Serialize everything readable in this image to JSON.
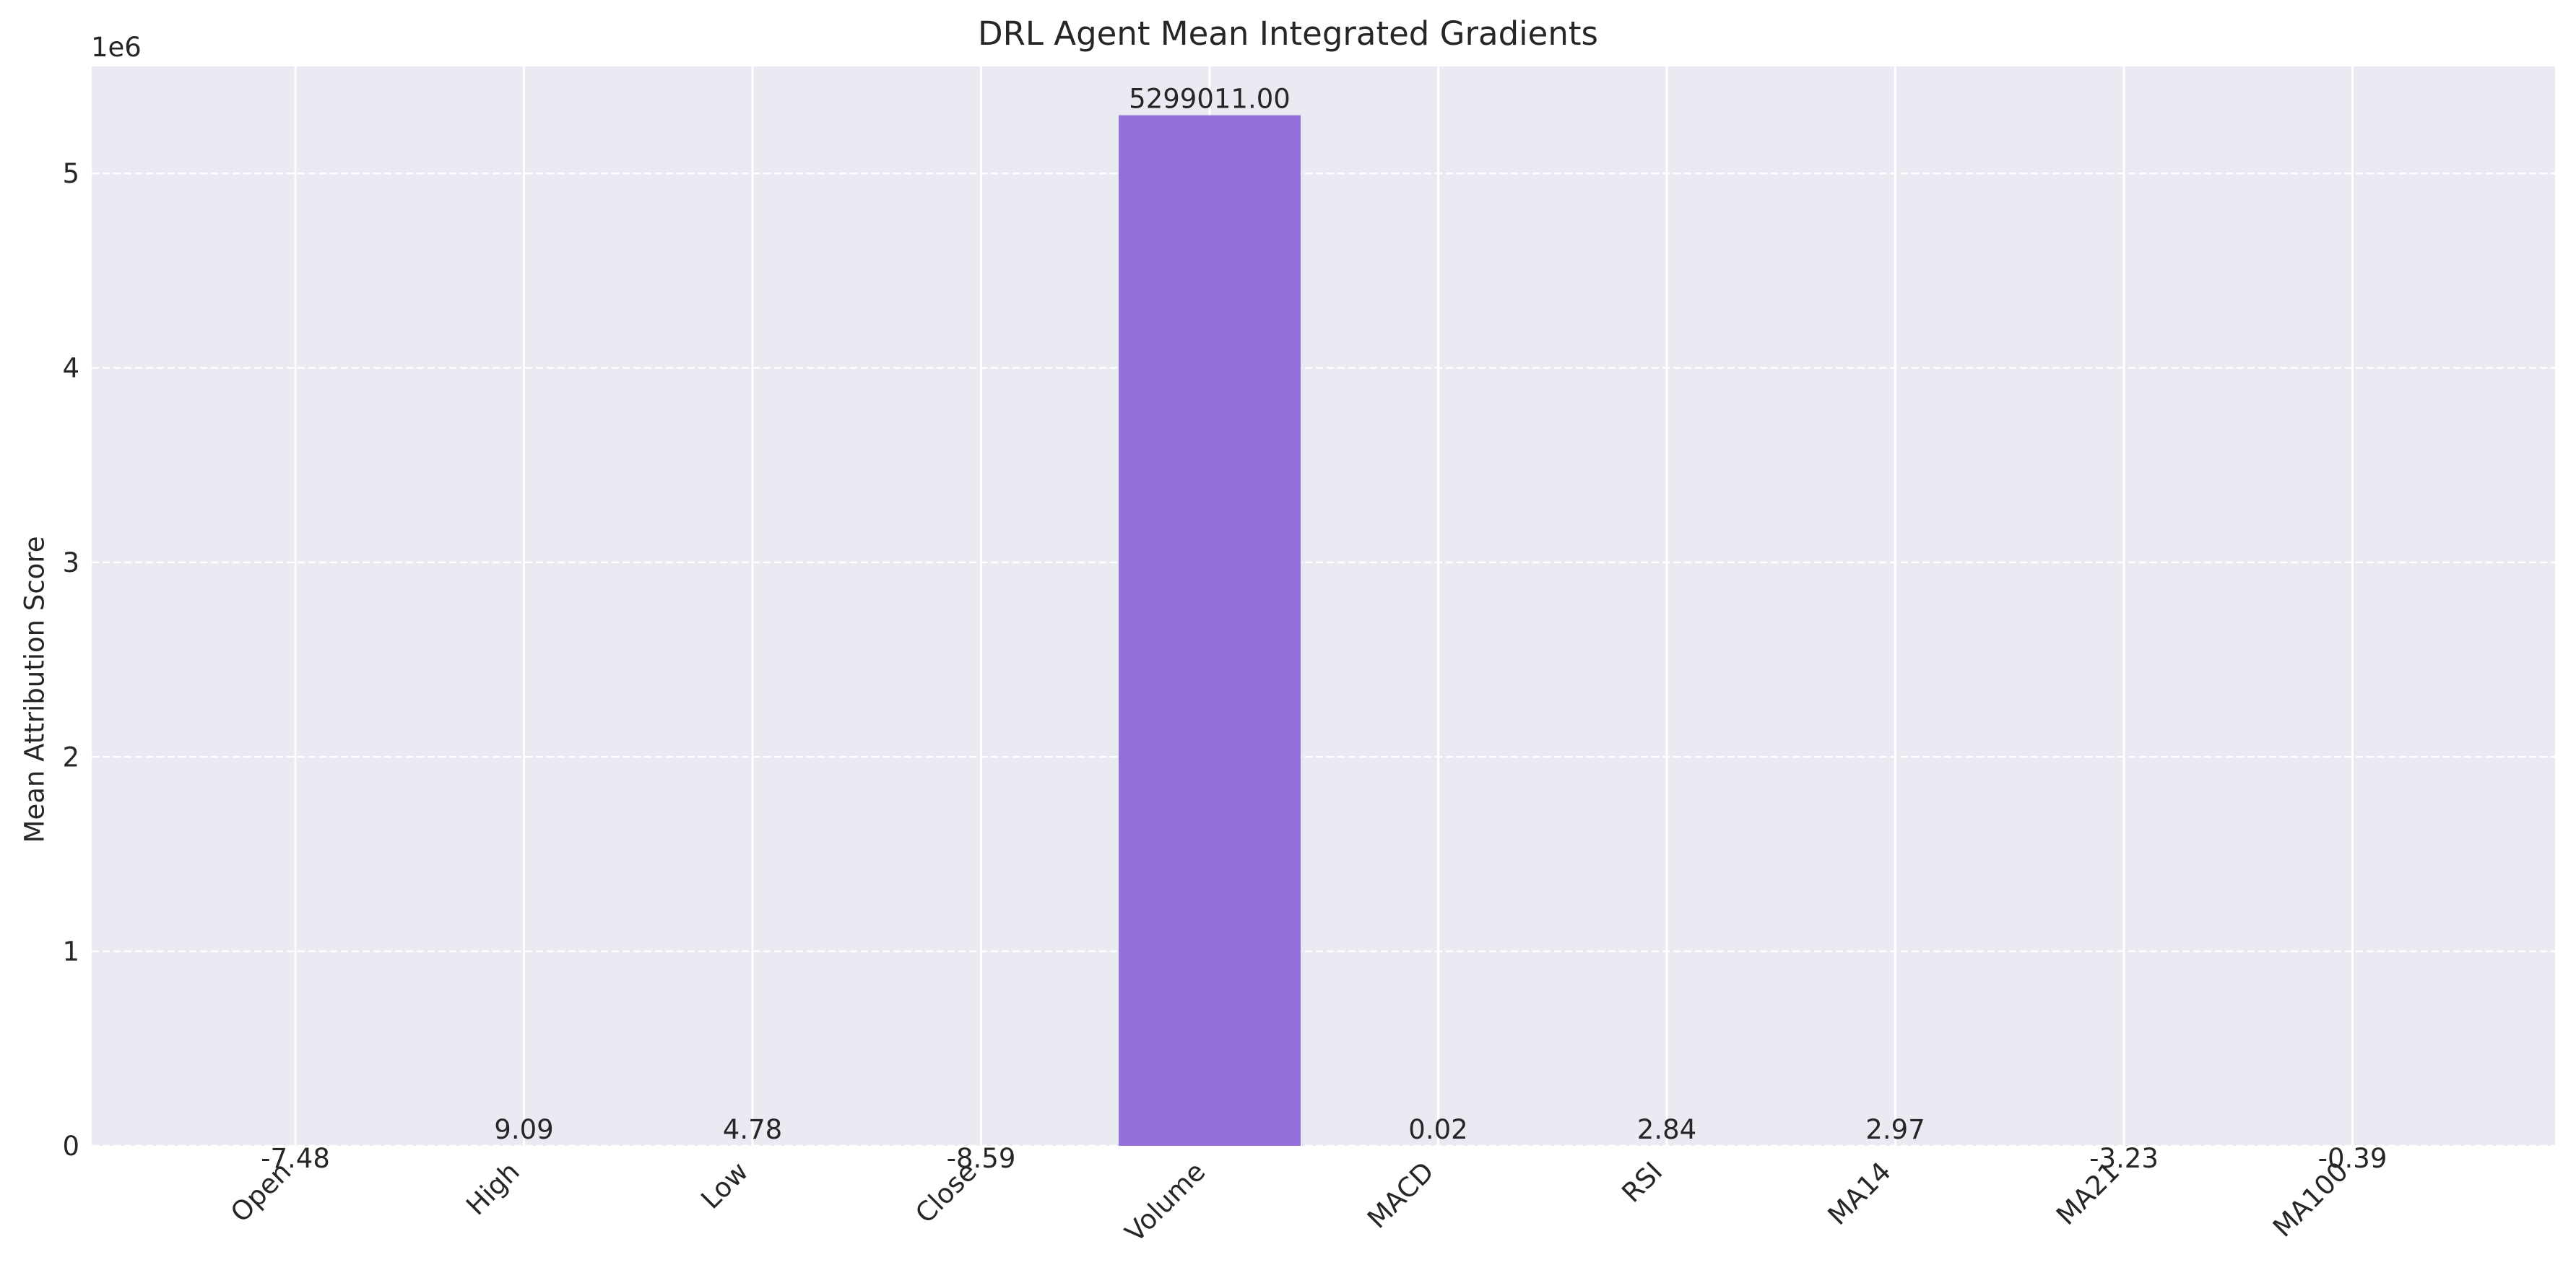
{
  "chart_data": {
    "type": "bar",
    "title": "DRL Agent Mean Integrated Gradients",
    "xlabel": "",
    "ylabel": "Mean Attribution Score",
    "y_offset_label": "1e6",
    "y_tick_labels": [
      "0",
      "1",
      "2",
      "3",
      "4",
      "5"
    ],
    "ylim": [
      0,
      5550000
    ],
    "grid": true,
    "categories": [
      "Open",
      "High",
      "Low",
      "Close",
      "Volume",
      "MACD",
      "RSI",
      "MA14",
      "MA21",
      "MA100"
    ],
    "values": [
      -7.48,
      9.09,
      4.78,
      -8.59,
      5299011.0,
      0.02,
      2.84,
      2.97,
      -3.23,
      -0.39
    ],
    "value_labels": [
      "-7.48",
      "9.09",
      "4.78",
      "-8.59",
      "5299011.00",
      "0.02",
      "2.84",
      "2.97",
      "-3.23",
      "-0.39"
    ],
    "bar_color": "#9370db",
    "background_color": "#eaeaf2"
  }
}
